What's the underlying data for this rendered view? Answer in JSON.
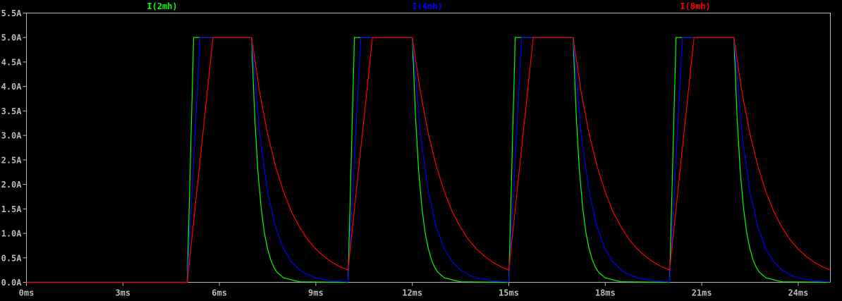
{
  "chart_data": {
    "type": "line",
    "title": "",
    "xlabel": "",
    "ylabel": "",
    "xlim": [
      0,
      25
    ],
    "ylim": [
      0,
      5.5
    ],
    "x_unit": "ms",
    "y_unit": "A",
    "grid": false,
    "legend_placement": "top",
    "background_color": "#000000",
    "axis_color": "#b8b8b8",
    "x_ticks": [
      0,
      3,
      6,
      9,
      12,
      15,
      18,
      21,
      24
    ],
    "x_tick_labels": [
      "0ms",
      "3ms",
      "6ms",
      "9ms",
      "12ms",
      "15ms",
      "18ms",
      "21ms",
      "24ms"
    ],
    "y_ticks": [
      0,
      0.5,
      1,
      1.5,
      2,
      2.5,
      3,
      3.5,
      4,
      4.5,
      5,
      5.5
    ],
    "y_tick_labels": [
      "0.0A",
      "0.5A",
      "1.0A",
      "1.5A",
      "2.0A",
      "2.5A",
      "3.0A",
      "3.5A",
      "4.0A",
      "4.5A",
      "5.0A",
      "5.5A"
    ],
    "series": [
      {
        "name": "I(2mh)",
        "color": "#00ff00",
        "points": [
          [
            0,
            0
          ],
          [
            5,
            0
          ],
          [
            5.2,
            5
          ],
          [
            7,
            5
          ],
          [
            7.1,
            3.35
          ],
          [
            7.2,
            2.25
          ],
          [
            7.3,
            1.51
          ],
          [
            7.4,
            1.01
          ],
          [
            7.5,
            0.68
          ],
          [
            7.6,
            0.45
          ],
          [
            7.7,
            0.3
          ],
          [
            7.8,
            0.2
          ],
          [
            8,
            0.09
          ],
          [
            8.5,
            0.01
          ],
          [
            10,
            0
          ],
          [
            10.2,
            5
          ],
          [
            12,
            5
          ],
          [
            12.1,
            3.35
          ],
          [
            12.2,
            2.25
          ],
          [
            12.3,
            1.51
          ],
          [
            12.4,
            1.01
          ],
          [
            12.5,
            0.68
          ],
          [
            12.6,
            0.45
          ],
          [
            12.7,
            0.3
          ],
          [
            12.8,
            0.2
          ],
          [
            13,
            0.09
          ],
          [
            13.5,
            0.01
          ],
          [
            15,
            0
          ],
          [
            15.2,
            5
          ],
          [
            17,
            5
          ],
          [
            17.1,
            3.35
          ],
          [
            17.2,
            2.25
          ],
          [
            17.3,
            1.51
          ],
          [
            17.4,
            1.01
          ],
          [
            17.5,
            0.68
          ],
          [
            17.6,
            0.45
          ],
          [
            17.7,
            0.3
          ],
          [
            17.8,
            0.2
          ],
          [
            18,
            0.09
          ],
          [
            18.5,
            0.01
          ],
          [
            20,
            0
          ],
          [
            20.2,
            5
          ],
          [
            22,
            5
          ],
          [
            22.1,
            3.35
          ],
          [
            22.2,
            2.25
          ],
          [
            22.3,
            1.51
          ],
          [
            22.4,
            1.01
          ],
          [
            22.5,
            0.68
          ],
          [
            22.6,
            0.45
          ],
          [
            22.7,
            0.3
          ],
          [
            22.8,
            0.2
          ],
          [
            23,
            0.09
          ],
          [
            23.5,
            0.01
          ],
          [
            25,
            0
          ]
        ]
      },
      {
        "name": "I(4mh)",
        "color": "#0000ff",
        "points": [
          [
            0,
            0
          ],
          [
            5,
            0
          ],
          [
            5.4,
            5
          ],
          [
            7,
            5
          ],
          [
            7.25,
            3.03
          ],
          [
            7.5,
            1.84
          ],
          [
            7.75,
            1.12
          ],
          [
            8,
            0.68
          ],
          [
            8.25,
            0.41
          ],
          [
            8.5,
            0.25
          ],
          [
            8.75,
            0.15
          ],
          [
            9,
            0.09
          ],
          [
            9.5,
            0.03
          ],
          [
            10,
            0.01
          ],
          [
            10.4,
            5
          ],
          [
            12,
            5
          ],
          [
            12.25,
            3.03
          ],
          [
            12.5,
            1.84
          ],
          [
            12.75,
            1.12
          ],
          [
            13,
            0.68
          ],
          [
            13.25,
            0.41
          ],
          [
            13.5,
            0.25
          ],
          [
            13.75,
            0.15
          ],
          [
            14,
            0.09
          ],
          [
            14.5,
            0.03
          ],
          [
            15,
            0.01
          ],
          [
            15.4,
            5
          ],
          [
            17,
            5
          ],
          [
            17.25,
            3.03
          ],
          [
            17.5,
            1.84
          ],
          [
            17.75,
            1.12
          ],
          [
            18,
            0.68
          ],
          [
            18.25,
            0.41
          ],
          [
            18.5,
            0.25
          ],
          [
            18.75,
            0.15
          ],
          [
            19,
            0.09
          ],
          [
            19.5,
            0.03
          ],
          [
            20,
            0.01
          ],
          [
            20.4,
            5
          ],
          [
            22,
            5
          ],
          [
            22.25,
            3.03
          ],
          [
            22.5,
            1.84
          ],
          [
            22.75,
            1.12
          ],
          [
            23,
            0.68
          ],
          [
            23.25,
            0.41
          ],
          [
            23.5,
            0.25
          ],
          [
            23.75,
            0.15
          ],
          [
            24,
            0.09
          ],
          [
            24.5,
            0.03
          ],
          [
            25,
            0.01
          ]
        ]
      },
      {
        "name": "I(8mh)",
        "color": "#ff0000",
        "points": [
          [
            0,
            0
          ],
          [
            5,
            0
          ],
          [
            5.8,
            5
          ],
          [
            7,
            5
          ],
          [
            7.25,
            3.89
          ],
          [
            7.5,
            3.03
          ],
          [
            7.75,
            2.36
          ],
          [
            8,
            1.84
          ],
          [
            8.25,
            1.43
          ],
          [
            8.5,
            1.12
          ],
          [
            8.75,
            0.87
          ],
          [
            9,
            0.68
          ],
          [
            9.25,
            0.53
          ],
          [
            9.5,
            0.41
          ],
          [
            9.75,
            0.32
          ],
          [
            10,
            0.25
          ],
          [
            10.76,
            5
          ],
          [
            12,
            5
          ],
          [
            12.25,
            3.89
          ],
          [
            12.5,
            3.03
          ],
          [
            12.75,
            2.36
          ],
          [
            13,
            1.84
          ],
          [
            13.25,
            1.43
          ],
          [
            13.5,
            1.12
          ],
          [
            13.75,
            0.87
          ],
          [
            14,
            0.68
          ],
          [
            14.25,
            0.53
          ],
          [
            14.5,
            0.41
          ],
          [
            14.75,
            0.32
          ],
          [
            15,
            0.25
          ],
          [
            15.76,
            5
          ],
          [
            17,
            5
          ],
          [
            17.25,
            3.89
          ],
          [
            17.5,
            3.03
          ],
          [
            17.75,
            2.36
          ],
          [
            18,
            1.84
          ],
          [
            18.25,
            1.43
          ],
          [
            18.5,
            1.12
          ],
          [
            18.75,
            0.87
          ],
          [
            19,
            0.68
          ],
          [
            19.25,
            0.53
          ],
          [
            19.5,
            0.41
          ],
          [
            19.75,
            0.32
          ],
          [
            20,
            0.25
          ],
          [
            20.76,
            5
          ],
          [
            22,
            5
          ],
          [
            22.25,
            3.89
          ],
          [
            22.5,
            3.03
          ],
          [
            22.75,
            2.36
          ],
          [
            23,
            1.84
          ],
          [
            23.25,
            1.43
          ],
          [
            23.5,
            1.12
          ],
          [
            23.75,
            0.87
          ],
          [
            24,
            0.68
          ],
          [
            24.25,
            0.53
          ],
          [
            24.5,
            0.41
          ],
          [
            24.75,
            0.32
          ],
          [
            25,
            0.25
          ]
        ]
      }
    ]
  }
}
